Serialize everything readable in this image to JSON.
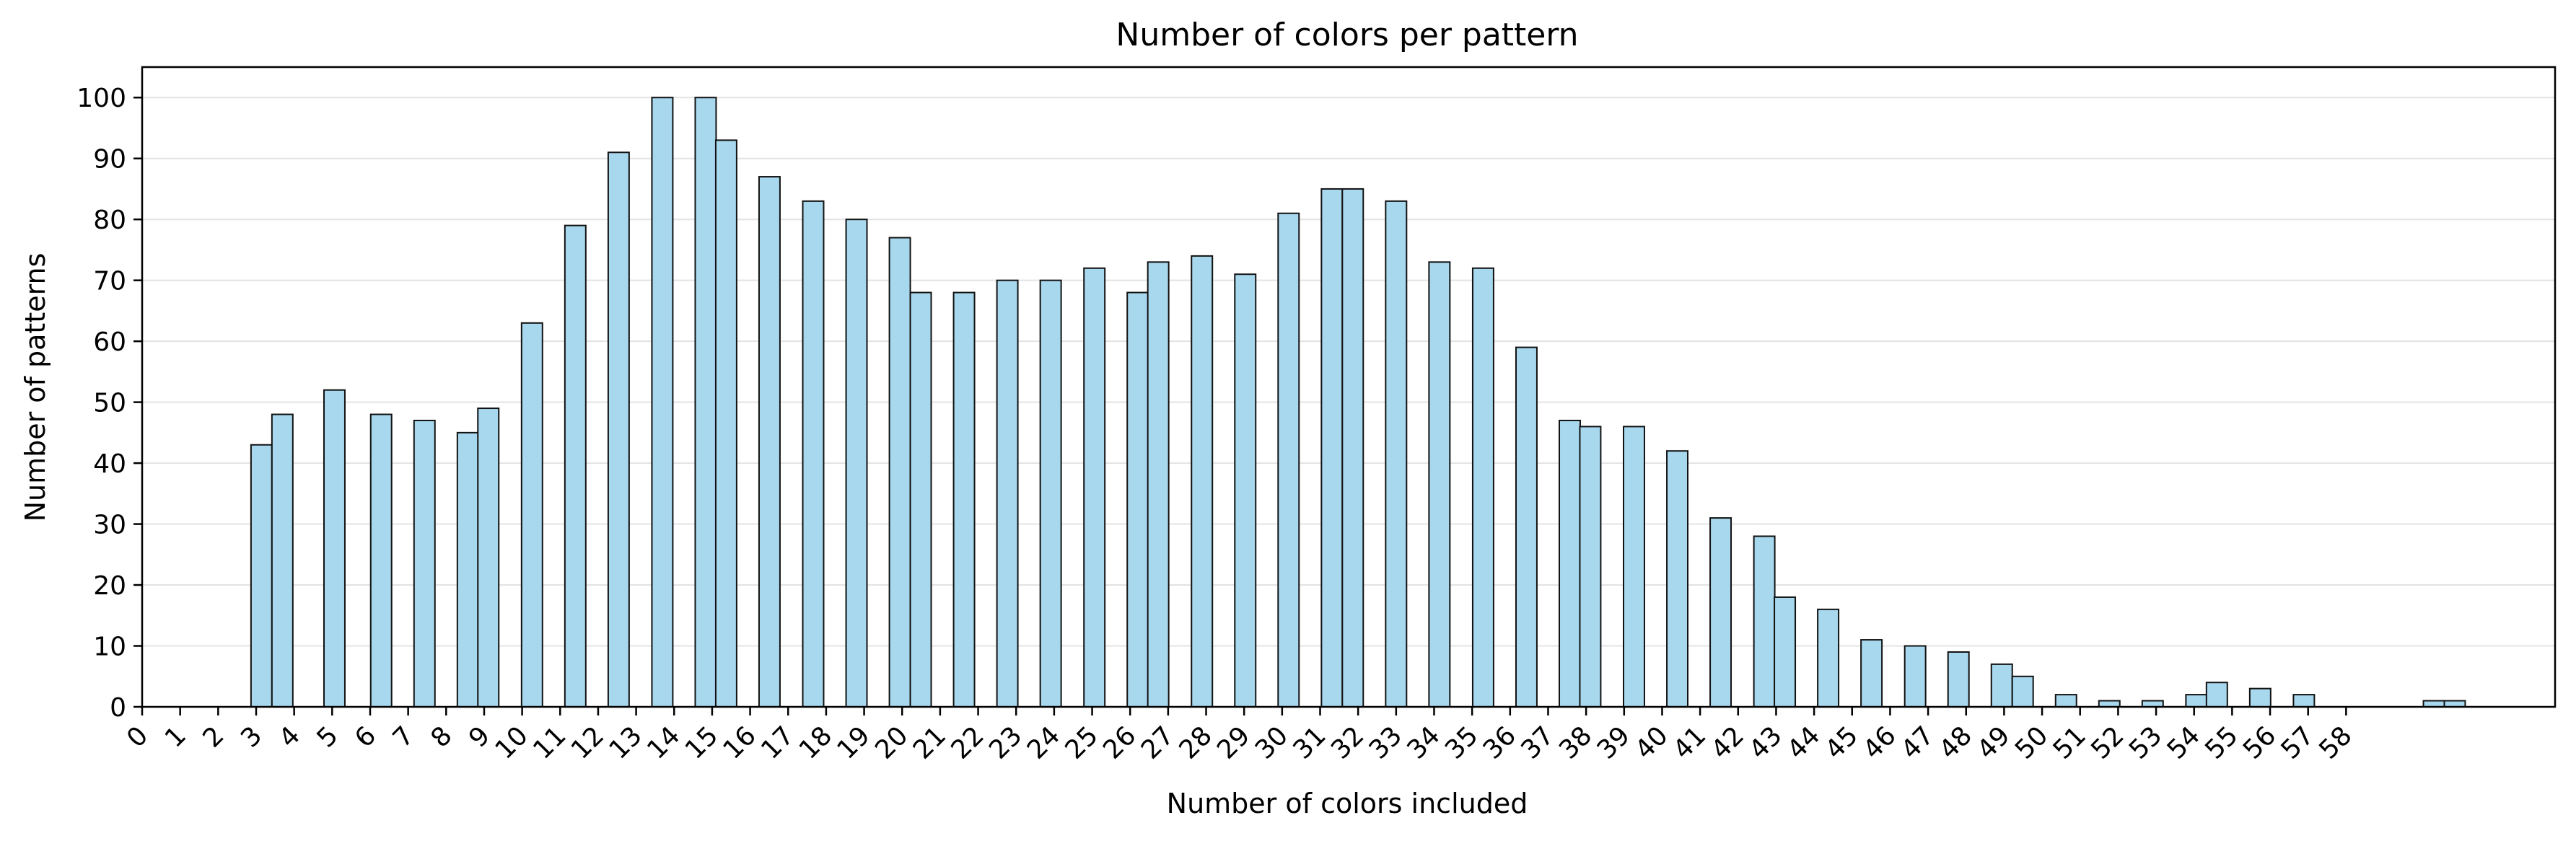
{
  "chart_data": {
    "type": "bar",
    "title": "Number of colors per pattern",
    "xlabel": "Number of colors included",
    "ylabel": "Number of patterns",
    "xlim": [
      0,
      63.5
    ],
    "ylim": [
      0,
      105
    ],
    "x_ticks": [
      0,
      1,
      2,
      3,
      4,
      5,
      6,
      7,
      8,
      9,
      10,
      11,
      12,
      13,
      14,
      15,
      16,
      17,
      18,
      19,
      20,
      21,
      22,
      23,
      24,
      25,
      26,
      27,
      28,
      29,
      30,
      31,
      32,
      33,
      34,
      35,
      36,
      37,
      38,
      39,
      40,
      41,
      42,
      43,
      44,
      45,
      46,
      47,
      48,
      49,
      50,
      51,
      52,
      53,
      54,
      55,
      56,
      57,
      58
    ],
    "y_ticks": [
      0,
      10,
      20,
      30,
      40,
      50,
      60,
      70,
      80,
      90,
      100
    ],
    "grid": "y",
    "bin_width": 0.55,
    "bars": [
      {
        "x": 3.14,
        "y": 43
      },
      {
        "x": 3.69,
        "y": 48
      },
      {
        "x": 5.06,
        "y": 52
      },
      {
        "x": 6.29,
        "y": 48
      },
      {
        "x": 7.43,
        "y": 47
      },
      {
        "x": 8.57,
        "y": 45
      },
      {
        "x": 9.11,
        "y": 49
      },
      {
        "x": 10.26,
        "y": 63
      },
      {
        "x": 11.4,
        "y": 79
      },
      {
        "x": 12.54,
        "y": 91
      },
      {
        "x": 13.69,
        "y": 100
      },
      {
        "x": 14.83,
        "y": 100
      },
      {
        "x": 15.37,
        "y": 93
      },
      {
        "x": 16.51,
        "y": 87
      },
      {
        "x": 17.66,
        "y": 83
      },
      {
        "x": 18.8,
        "y": 80
      },
      {
        "x": 19.94,
        "y": 77
      },
      {
        "x": 20.49,
        "y": 68
      },
      {
        "x": 21.63,
        "y": 68
      },
      {
        "x": 22.77,
        "y": 70
      },
      {
        "x": 23.91,
        "y": 70
      },
      {
        "x": 25.06,
        "y": 72
      },
      {
        "x": 26.2,
        "y": 68
      },
      {
        "x": 26.74,
        "y": 73
      },
      {
        "x": 27.89,
        "y": 74
      },
      {
        "x": 29.03,
        "y": 71
      },
      {
        "x": 30.17,
        "y": 81
      },
      {
        "x": 31.31,
        "y": 85
      },
      {
        "x": 31.86,
        "y": 85
      },
      {
        "x": 33.0,
        "y": 83
      },
      {
        "x": 34.14,
        "y": 73
      },
      {
        "x": 35.29,
        "y": 72
      },
      {
        "x": 36.43,
        "y": 59
      },
      {
        "x": 37.57,
        "y": 47
      },
      {
        "x": 38.11,
        "y": 46
      },
      {
        "x": 39.26,
        "y": 46
      },
      {
        "x": 40.4,
        "y": 42
      },
      {
        "x": 41.54,
        "y": 31
      },
      {
        "x": 42.69,
        "y": 28
      },
      {
        "x": 43.23,
        "y": 18
      },
      {
        "x": 44.37,
        "y": 16
      },
      {
        "x": 45.51,
        "y": 11
      },
      {
        "x": 46.66,
        "y": 10
      },
      {
        "x": 47.8,
        "y": 9
      },
      {
        "x": 48.94,
        "y": 7
      },
      {
        "x": 49.49,
        "y": 5
      },
      {
        "x": 50.63,
        "y": 2
      },
      {
        "x": 51.77,
        "y": 1
      },
      {
        "x": 52.91,
        "y": 1
      },
      {
        "x": 54.06,
        "y": 2
      },
      {
        "x": 54.6,
        "y": 4
      },
      {
        "x": 55.74,
        "y": 3
      },
      {
        "x": 56.89,
        "y": 2
      },
      {
        "x": 60.31,
        "y": 1
      },
      {
        "x": 60.86,
        "y": 1
      }
    ],
    "colors": {
      "bar_fill": "#a8d8ee",
      "bar_edge": "#111111",
      "grid": "#e3e3e3"
    }
  }
}
